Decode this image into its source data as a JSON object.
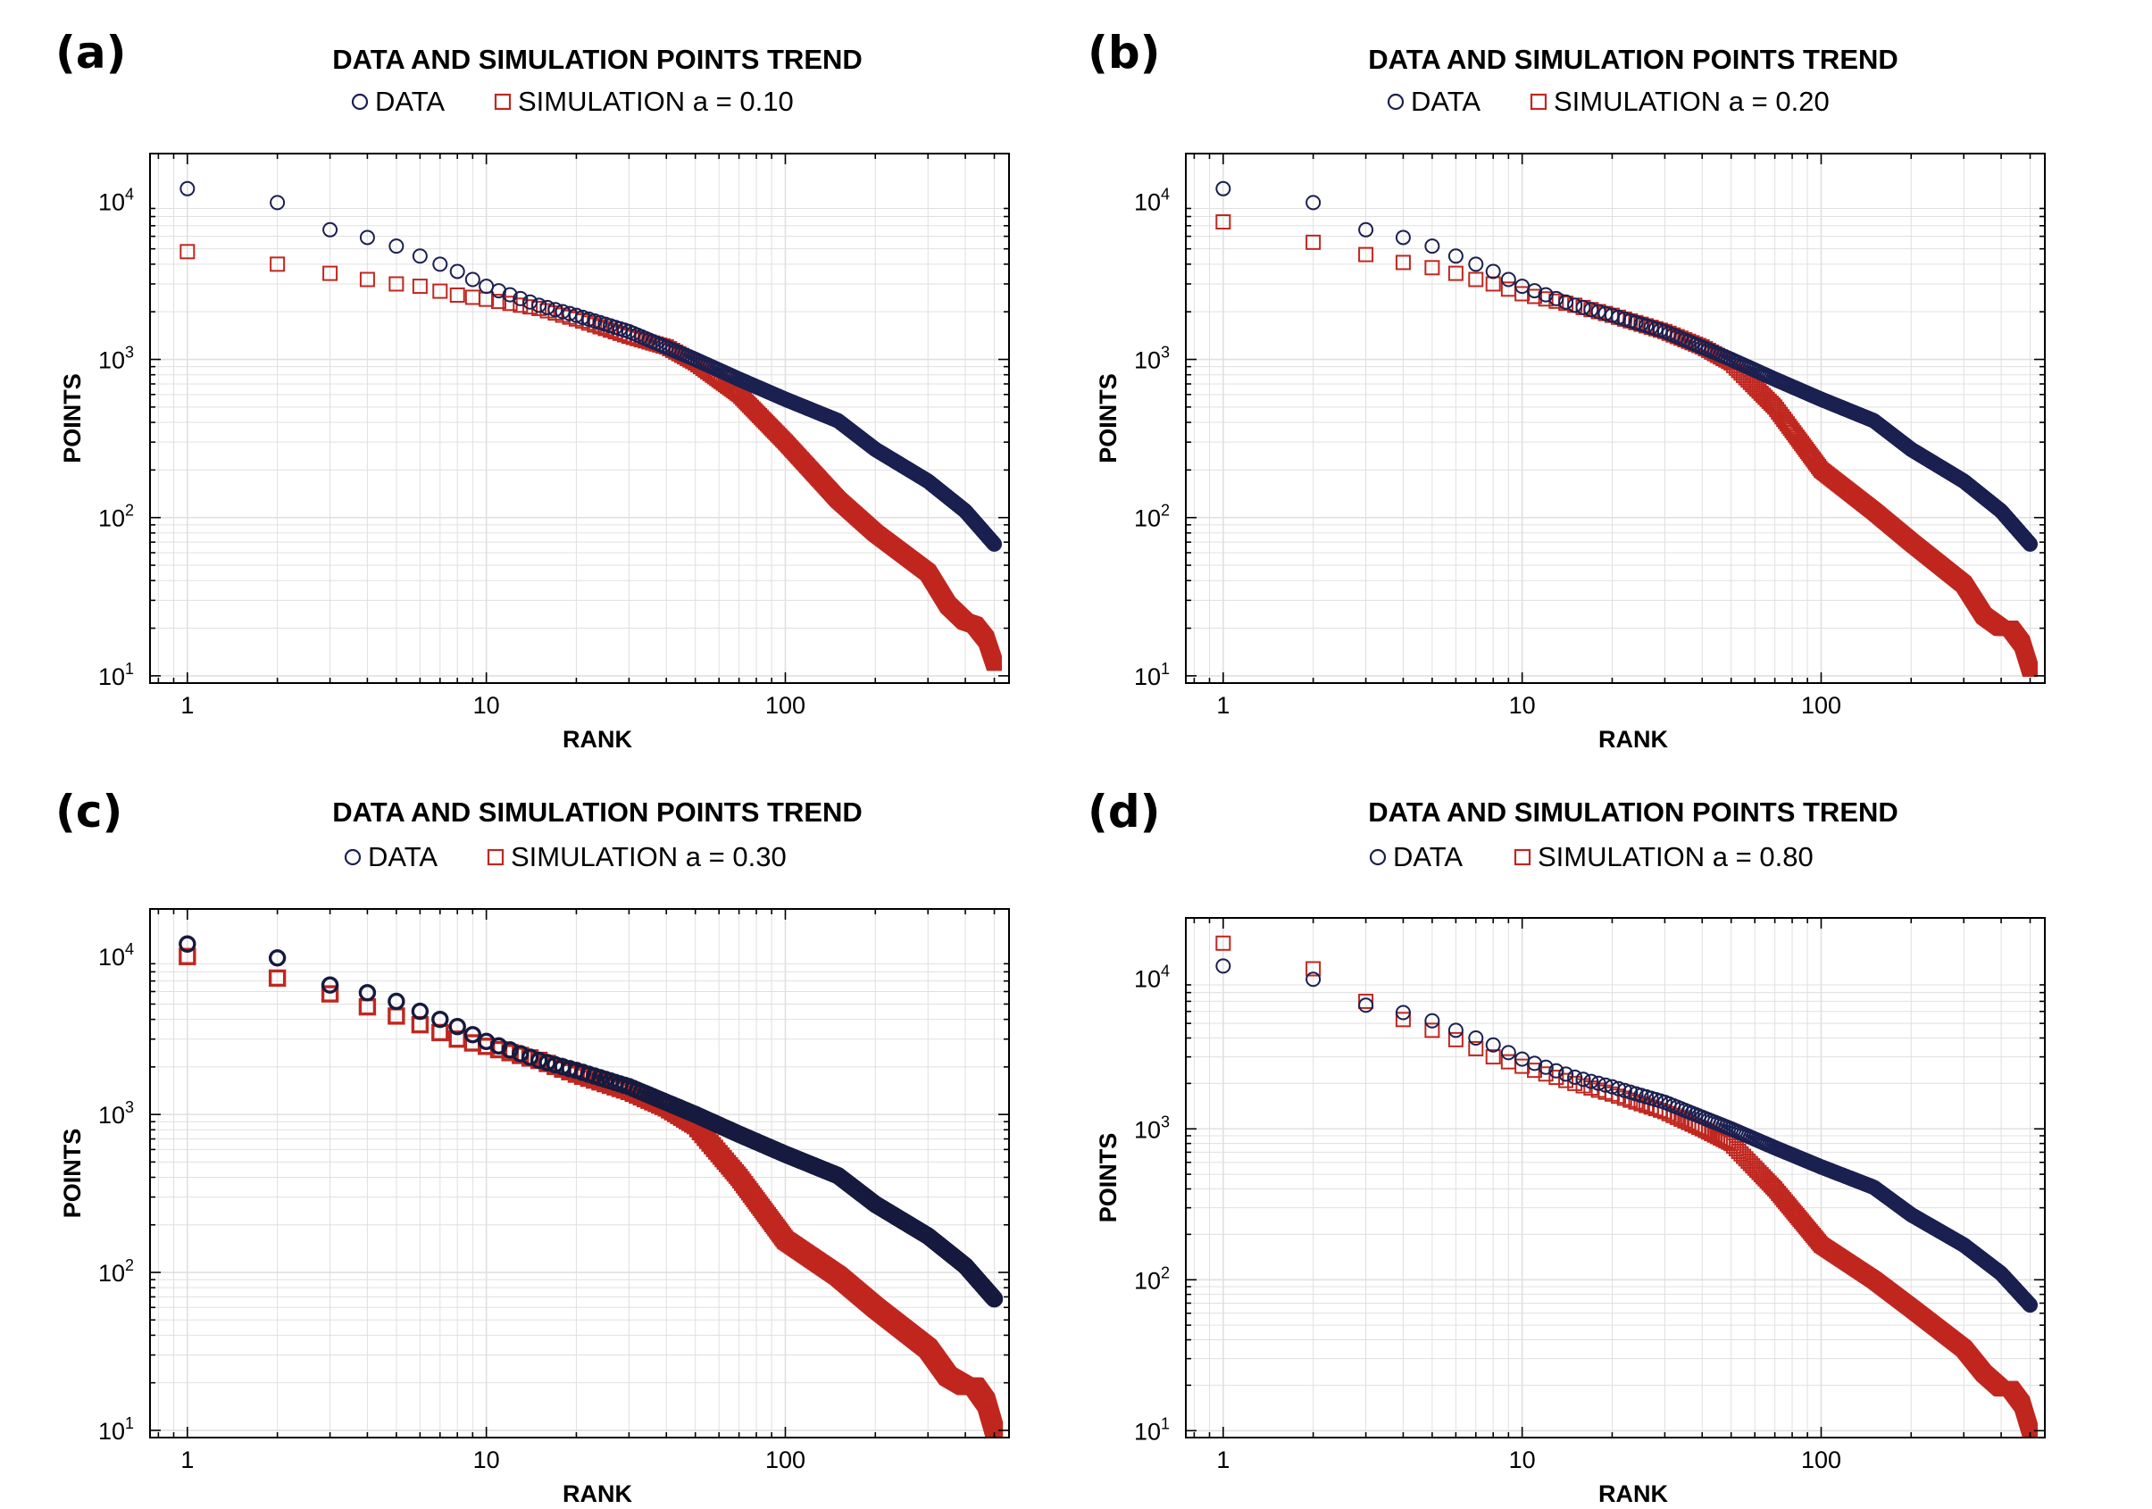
{
  "colors": {
    "data": "#1a2050",
    "simulation": "#c0271f",
    "grid": "#e0e0e0"
  },
  "chart_data": [
    {
      "panel": "(a)",
      "type": "scatter",
      "title": "DATA AND SIMULATION POINTS TREND",
      "xlabel": "RANK",
      "ylabel": "POINTS",
      "xscale": "log",
      "yscale": "log",
      "xlim": [
        0.75,
        560
      ],
      "ylim": [
        9,
        20000
      ],
      "xticks": [
        "1",
        "10",
        "100"
      ],
      "yticks": [
        {
          "base": "10",
          "exp": "1"
        },
        {
          "base": "10",
          "exp": "2"
        },
        {
          "base": "10",
          "exp": "3"
        },
        {
          "base": "10",
          "exp": "4"
        }
      ],
      "grid": true,
      "legend": "top-center",
      "series": [
        {
          "name": "DATA",
          "marker": "circle",
          "filled": false,
          "n_points": 500,
          "anchors": [
            [
              1,
              12000
            ],
            [
              2,
              9800
            ],
            [
              3,
              6600
            ],
            [
              4,
              5900
            ],
            [
              5,
              5200
            ],
            [
              6,
              4500
            ],
            [
              7,
              4000
            ],
            [
              8,
              3600
            ],
            [
              9,
              3200
            ],
            [
              10,
              2900
            ],
            [
              15,
              2200
            ],
            [
              20,
              1900
            ],
            [
              30,
              1500
            ],
            [
              50,
              1000
            ],
            [
              70,
              750
            ],
            [
              100,
              560
            ],
            [
              150,
              410
            ],
            [
              200,
              270
            ],
            [
              300,
              170
            ],
            [
              400,
              110
            ],
            [
              500,
              68
            ]
          ]
        },
        {
          "name": "SIMULATION a = 0.10",
          "marker": "square",
          "filled": false,
          "n_points": 500,
          "anchors": [
            [
              1,
              4800
            ],
            [
              2,
              4000
            ],
            [
              3,
              3500
            ],
            [
              4,
              3200
            ],
            [
              5,
              3000
            ],
            [
              6,
              2900
            ],
            [
              7,
              2700
            ],
            [
              8,
              2550
            ],
            [
              10,
              2400
            ],
            [
              15,
              2100
            ],
            [
              20,
              1800
            ],
            [
              30,
              1400
            ],
            [
              40,
              1200
            ],
            [
              50,
              950
            ],
            [
              70,
              600
            ],
            [
              100,
              300
            ],
            [
              150,
              130
            ],
            [
              200,
              80
            ],
            [
              300,
              45
            ],
            [
              350,
              28
            ],
            [
              400,
              22
            ],
            [
              430,
              21
            ],
            [
              470,
              17
            ],
            [
              500,
              12
            ]
          ]
        }
      ]
    },
    {
      "panel": "(b)",
      "type": "scatter",
      "title": "DATA AND SIMULATION POINTS TREND",
      "xlabel": "RANK",
      "ylabel": "POINTS",
      "xscale": "log",
      "yscale": "log",
      "xlim": [
        0.75,
        560
      ],
      "ylim": [
        9,
        20000
      ],
      "xticks": [
        "1",
        "10",
        "100"
      ],
      "yticks": [
        {
          "base": "10",
          "exp": "1"
        },
        {
          "base": "10",
          "exp": "2"
        },
        {
          "base": "10",
          "exp": "3"
        },
        {
          "base": "10",
          "exp": "4"
        }
      ],
      "grid": true,
      "legend": "top-center",
      "series": [
        {
          "name": "DATA",
          "marker": "circle",
          "filled": false,
          "n_points": 500,
          "anchors": [
            [
              1,
              12000
            ],
            [
              2,
              9800
            ],
            [
              3,
              6600
            ],
            [
              4,
              5900
            ],
            [
              5,
              5200
            ],
            [
              6,
              4500
            ],
            [
              7,
              4000
            ],
            [
              8,
              3600
            ],
            [
              9,
              3200
            ],
            [
              10,
              2900
            ],
            [
              15,
              2200
            ],
            [
              20,
              1900
            ],
            [
              30,
              1500
            ],
            [
              50,
              1000
            ],
            [
              70,
              750
            ],
            [
              100,
              560
            ],
            [
              150,
              410
            ],
            [
              200,
              270
            ],
            [
              300,
              170
            ],
            [
              400,
              110
            ],
            [
              500,
              68
            ]
          ]
        },
        {
          "name": "SIMULATION a = 0.20",
          "marker": "square",
          "filled": false,
          "n_points": 500,
          "anchors": [
            [
              1,
              7400
            ],
            [
              2,
              5500
            ],
            [
              3,
              4600
            ],
            [
              4,
              4100
            ],
            [
              5,
              3800
            ],
            [
              6,
              3500
            ],
            [
              7,
              3200
            ],
            [
              8,
              3000
            ],
            [
              10,
              2600
            ],
            [
              15,
              2200
            ],
            [
              20,
              1900
            ],
            [
              30,
              1500
            ],
            [
              40,
              1200
            ],
            [
              50,
              950
            ],
            [
              70,
              500
            ],
            [
              100,
              200
            ],
            [
              150,
              110
            ],
            [
              200,
              70
            ],
            [
              300,
              38
            ],
            [
              350,
              24
            ],
            [
              400,
              20
            ],
            [
              430,
              20
            ],
            [
              470,
              16
            ],
            [
              500,
              11
            ]
          ]
        }
      ]
    },
    {
      "panel": "(c)",
      "type": "scatter",
      "title": "DATA AND SIMULATION POINTS TREND",
      "xlabel": "RANK",
      "ylabel": "POINTS",
      "xscale": "log",
      "yscale": "log",
      "xlim": [
        0.75,
        560
      ],
      "ylim": [
        9,
        20000
      ],
      "xticks": [
        "1",
        "10",
        "100"
      ],
      "yticks": [
        {
          "base": "10",
          "exp": "1"
        },
        {
          "base": "10",
          "exp": "2"
        },
        {
          "base": "10",
          "exp": "3"
        },
        {
          "base": "10",
          "exp": "4"
        }
      ],
      "grid": true,
      "legend": "top-center",
      "series": [
        {
          "name": "DATA",
          "marker": "circle",
          "filled": false,
          "n_points": 500,
          "anchors": [
            [
              1,
              12000
            ],
            [
              2,
              9800
            ],
            [
              3,
              6600
            ],
            [
              4,
              5900
            ],
            [
              5,
              5200
            ],
            [
              6,
              4500
            ],
            [
              7,
              4000
            ],
            [
              8,
              3600
            ],
            [
              9,
              3200
            ],
            [
              10,
              2900
            ],
            [
              15,
              2200
            ],
            [
              20,
              1900
            ],
            [
              30,
              1500
            ],
            [
              50,
              1000
            ],
            [
              70,
              750
            ],
            [
              100,
              560
            ],
            [
              150,
              410
            ],
            [
              200,
              270
            ],
            [
              300,
              170
            ],
            [
              400,
              110
            ],
            [
              500,
              68
            ]
          ]
        },
        {
          "name": "SIMULATION a = 0.30",
          "marker": "square",
          "filled": false,
          "n_points": 500,
          "anchors": [
            [
              1,
              10000
            ],
            [
              2,
              7300
            ],
            [
              3,
              5800
            ],
            [
              4,
              4800
            ],
            [
              5,
              4200
            ],
            [
              6,
              3700
            ],
            [
              7,
              3300
            ],
            [
              8,
              3000
            ],
            [
              10,
              2700
            ],
            [
              15,
              2200
            ],
            [
              20,
              1800
            ],
            [
              30,
              1400
            ],
            [
              40,
              1100
            ],
            [
              50,
              850
            ],
            [
              70,
              400
            ],
            [
              100,
              160
            ],
            [
              150,
              95
            ],
            [
              200,
              60
            ],
            [
              300,
              33
            ],
            [
              350,
              22
            ],
            [
              400,
              19
            ],
            [
              430,
              19
            ],
            [
              470,
              15
            ],
            [
              500,
              10
            ]
          ]
        }
      ]
    },
    {
      "panel": "(d)",
      "type": "scatter",
      "title": "DATA AND SIMULATION POINTS TREND",
      "xlabel": "RANK",
      "ylabel": "POINTS",
      "xscale": "log",
      "yscale": "log",
      "xlim": [
        0.75,
        560
      ],
      "ylim": [
        9,
        25000
      ],
      "xticks": [
        "1",
        "10",
        "100"
      ],
      "yticks": [
        {
          "base": "10",
          "exp": "1"
        },
        {
          "base": "10",
          "exp": "2"
        },
        {
          "base": "10",
          "exp": "3"
        },
        {
          "base": "10",
          "exp": "4"
        }
      ],
      "grid": true,
      "legend": "top-center",
      "series": [
        {
          "name": "DATA",
          "marker": "circle",
          "filled": false,
          "n_points": 500,
          "anchors": [
            [
              1,
              12000
            ],
            [
              2,
              9800
            ],
            [
              3,
              6600
            ],
            [
              4,
              5900
            ],
            [
              5,
              5200
            ],
            [
              6,
              4500
            ],
            [
              7,
              4000
            ],
            [
              8,
              3600
            ],
            [
              9,
              3200
            ],
            [
              10,
              2900
            ],
            [
              15,
              2200
            ],
            [
              20,
              1900
            ],
            [
              30,
              1500
            ],
            [
              50,
              1000
            ],
            [
              70,
              750
            ],
            [
              100,
              560
            ],
            [
              150,
              410
            ],
            [
              200,
              270
            ],
            [
              300,
              170
            ],
            [
              400,
              110
            ],
            [
              500,
              68
            ]
          ]
        },
        {
          "name": "SIMULATION a = 0.80",
          "marker": "square",
          "filled": false,
          "n_points": 500,
          "anchors": [
            [
              1,
              17000
            ],
            [
              2,
              11500
            ],
            [
              3,
              7000
            ],
            [
              4,
              5300
            ],
            [
              5,
              4500
            ],
            [
              6,
              3900
            ],
            [
              7,
              3400
            ],
            [
              8,
              3000
            ],
            [
              10,
              2600
            ],
            [
              15,
              2000
            ],
            [
              20,
              1700
            ],
            [
              30,
              1300
            ],
            [
              40,
              1000
            ],
            [
              50,
              800
            ],
            [
              70,
              400
            ],
            [
              100,
              170
            ],
            [
              150,
              100
            ],
            [
              200,
              65
            ],
            [
              300,
              35
            ],
            [
              350,
              24
            ],
            [
              400,
              19
            ],
            [
              430,
              19
            ],
            [
              470,
              15
            ],
            [
              500,
              10
            ]
          ]
        }
      ]
    }
  ]
}
